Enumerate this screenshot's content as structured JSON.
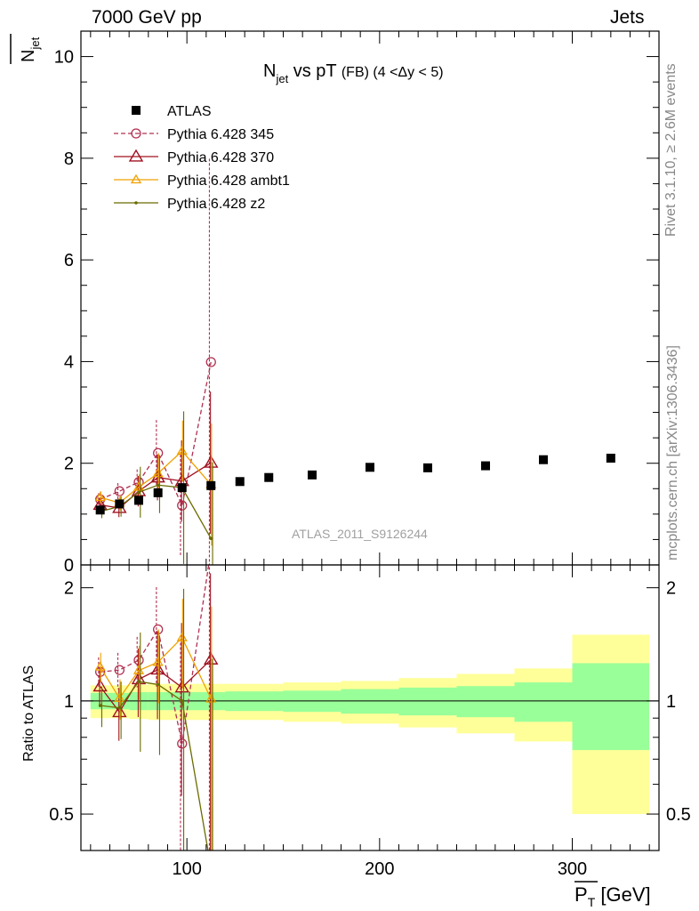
{
  "header": {
    "left": "7000 GeV pp",
    "right": "Jets"
  },
  "side_labels": {
    "rivet": "Rivet 3.1.10, ≥ 2.6M events",
    "mcplots": "mcplots.cern.ch [arXiv:1306.3436]"
  },
  "chart_data": {
    "type": "line",
    "title": "N_jet vs pT (FB) (4 < Δy < 5)",
    "title_main": "N",
    "title_sub": "jet",
    "title_vs": " vs pT ",
    "title_sel": "(FB) (4 <Δy < 5)",
    "watermark": "ATLAS_2011_S9126244",
    "xlabel": "P_T [GeV]",
    "xlabel_main": "P",
    "xlabel_sub": "T",
    "xlabel_unit": " [GeV]",
    "ylabel": "N_jet",
    "ylabel_main": "N",
    "ylabel_sub": "jet",
    "ratio_ylabel": "Ratio to ATLAS",
    "xlim": [
      45,
      345
    ],
    "ylim": [
      0,
      10.5
    ],
    "ratio_ylim": [
      0.4,
      2.3
    ],
    "ratio_log": true,
    "xticks": [
      100,
      200,
      300
    ],
    "yticks": [
      2,
      4,
      6,
      8,
      10
    ],
    "yticks_zero_label": "0",
    "ratio_ticks": [
      0.5,
      1,
      2
    ],
    "ratio_tick_labels": [
      "0.5",
      "1",
      "2"
    ],
    "legend_position": "top-left",
    "data": {
      "name": "ATLAS",
      "x": [
        55,
        65,
        75,
        85,
        97.5,
        112.5,
        127.5,
        142.5,
        165,
        195,
        225,
        255,
        285,
        320
      ],
      "y": [
        1.08,
        1.2,
        1.27,
        1.42,
        1.52,
        1.56,
        1.64,
        1.72,
        1.77,
        1.92,
        1.91,
        1.95,
        2.07,
        2.1
      ],
      "xlow": [
        50,
        60,
        70,
        80,
        90,
        105,
        120,
        135,
        150,
        180,
        210,
        240,
        270,
        300
      ],
      "xhigh": [
        60,
        70,
        80,
        90,
        105,
        120,
        135,
        150,
        180,
        210,
        240,
        270,
        300,
        340
      ],
      "ratio_band_stat": [
        0.05,
        0.05,
        0.055,
        0.055,
        0.055,
        0.055,
        0.06,
        0.06,
        0.065,
        0.075,
        0.085,
        0.095,
        0.12,
        0.26
      ],
      "ratio_band_total": [
        0.1,
        0.1,
        0.105,
        0.11,
        0.11,
        0.11,
        0.11,
        0.11,
        0.12,
        0.13,
        0.15,
        0.18,
        0.22,
        0.5
      ]
    },
    "series": [
      {
        "name": "Pythia 6.428 345",
        "color": "#b03050",
        "marker": "open-circle",
        "dashed": true,
        "x": [
          55,
          65,
          75,
          85,
          97.5,
          112.5
        ],
        "y": [
          1.29,
          1.45,
          1.63,
          2.2,
          1.17,
          3.99
        ],
        "yerr": [
          0.12,
          0.16,
          0.25,
          0.65,
          1.0,
          4.0
        ]
      },
      {
        "name": "Pythia 6.428 370",
        "color": "#a01020",
        "marker": "open-triangle",
        "dashed": false,
        "x": [
          55,
          65,
          75,
          85,
          97.5,
          112.5
        ],
        "y": [
          1.18,
          1.12,
          1.45,
          1.72,
          1.65,
          2.01
        ],
        "yerr": [
          0.14,
          0.18,
          0.3,
          0.45,
          0.8,
          1.4
        ]
      },
      {
        "name": "Pythia 6.428 ambt1",
        "color": "#f0a000",
        "marker": "open-triangle-small",
        "dashed": false,
        "x": [
          55,
          65,
          75,
          85,
          97.5,
          112.5
        ],
        "y": [
          1.33,
          1.22,
          1.53,
          1.8,
          2.24,
          1.58
        ],
        "yerr": [
          0.12,
          0.15,
          0.25,
          0.4,
          0.6,
          1.2
        ]
      },
      {
        "name": "Pythia 6.428 z2",
        "color": "#6b6b00",
        "marker": "dot",
        "dashed": false,
        "x": [
          55,
          65,
          75,
          85,
          97.5,
          112.5
        ],
        "y": [
          1.05,
          1.15,
          1.43,
          1.57,
          1.52,
          0.52
        ],
        "yerr": [
          0.13,
          0.2,
          0.5,
          0.55,
          1.5,
          1.5
        ]
      }
    ]
  }
}
